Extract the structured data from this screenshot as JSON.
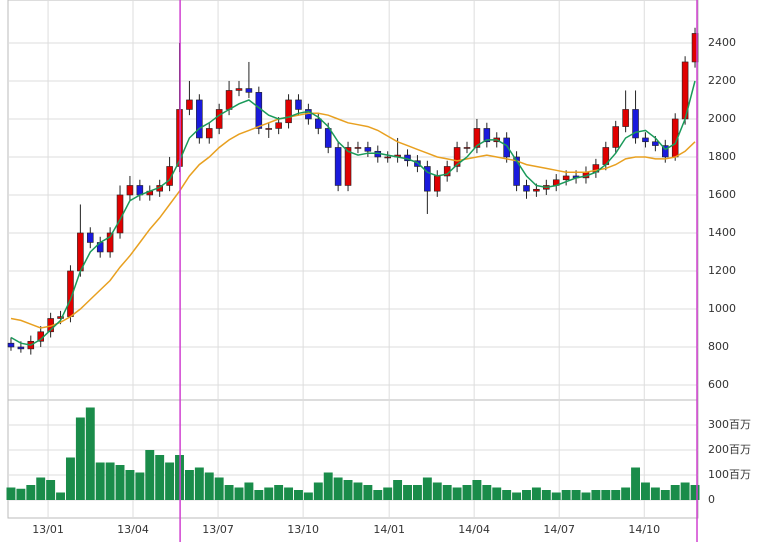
{
  "chart_data": {
    "type": "candlestick",
    "categories": [
      null,
      null,
      null,
      null,
      null,
      null,
      null,
      null,
      null,
      null,
      null,
      null,
      null,
      null,
      null,
      null,
      null,
      null,
      null,
      null,
      null,
      null,
      null,
      null,
      null,
      null,
      null,
      null,
      null,
      null,
      null,
      null,
      null,
      null,
      null,
      null,
      null,
      null,
      null,
      null,
      null,
      null,
      null,
      null,
      null,
      null,
      null,
      null,
      null,
      null,
      null,
      null,
      null,
      null,
      null,
      null,
      null,
      null,
      null,
      null,
      null,
      null,
      null,
      null,
      null,
      null,
      null,
      null,
      null,
      null
    ],
    "xlim": [
      -0.3,
      69.3
    ],
    "xticks": [
      {
        "value": 3.74,
        "label": "13/01"
      },
      {
        "value": 12.31,
        "label": "13/04"
      },
      {
        "value": 20.89,
        "label": "13/07"
      },
      {
        "value": 29.47,
        "label": "13/10"
      },
      {
        "value": 38.15,
        "label": "14/01"
      },
      {
        "value": 46.72,
        "label": "14/04"
      },
      {
        "value": 55.3,
        "label": "14/07"
      },
      {
        "value": 63.88,
        "label": "14/10"
      }
    ],
    "markers": [
      17.06,
      69.2
    ],
    "marker_color": "#d040d0",
    "ylim": [
      521,
      2626
    ],
    "yticks": [
      600,
      800,
      1000,
      1200,
      1400,
      1600,
      1800,
      2000,
      2200,
      2400
    ],
    "up_color": "#e00000",
    "down_color": "#1a1adc",
    "grid": true,
    "open": [
      820,
      800,
      790,
      830,
      880,
      950,
      960,
      1200,
      1400,
      1350,
      1300,
      1400,
      1600,
      1650,
      1600,
      1620,
      1650,
      1750,
      2050,
      2100,
      1900,
      1950,
      2050,
      2150,
      2160,
      2140,
      1950,
      1950,
      1980,
      2100,
      2050,
      2000,
      1950,
      1850,
      1650,
      1850,
      1850,
      1830,
      1800,
      1800,
      1810,
      1780,
      1750,
      1620,
      1700,
      1750,
      1850,
      1850,
      1950,
      1880,
      1900,
      1800,
      1650,
      1620,
      1630,
      1650,
      1680,
      1700,
      1690,
      1720,
      1760,
      1850,
      1960,
      2050,
      1900,
      1880,
      1860,
      1800,
      2000,
      2300
    ],
    "high": [
      850,
      830,
      860,
      910,
      980,
      990,
      1230,
      1550,
      1430,
      1380,
      1430,
      1650,
      1700,
      1680,
      1650,
      1680,
      1800,
      2400,
      2200,
      2130,
      1980,
      2080,
      2200,
      2200,
      2300,
      2170,
      1980,
      2010,
      2130,
      2130,
      2080,
      2030,
      1980,
      1880,
      1880,
      1880,
      1880,
      1860,
      1830,
      1900,
      1840,
      1810,
      1780,
      1730,
      1780,
      1880,
      1880,
      2000,
      1980,
      1930,
      1930,
      1830,
      1680,
      1660,
      1680,
      1710,
      1730,
      1730,
      1750,
      1790,
      1880,
      1990,
      2150,
      2150,
      1930,
      1910,
      1890,
      2030,
      2330,
      2480
    ],
    "low": [
      780,
      770,
      760,
      800,
      850,
      920,
      930,
      1170,
      1320,
      1270,
      1270,
      1370,
      1570,
      1570,
      1570,
      1590,
      1620,
      1720,
      2020,
      1870,
      1870,
      1920,
      2020,
      2120,
      2110,
      1920,
      1900,
      1920,
      1950,
      2020,
      1970,
      1920,
      1820,
      1620,
      1620,
      1820,
      1800,
      1770,
      1770,
      1770,
      1750,
      1720,
      1500,
      1590,
      1670,
      1720,
      1820,
      1820,
      1850,
      1850,
      1770,
      1620,
      1580,
      1590,
      1600,
      1620,
      1650,
      1660,
      1660,
      1690,
      1730,
      1820,
      1930,
      1870,
      1850,
      1830,
      1770,
      1780,
      1970,
      2270
    ],
    "close": [
      800,
      790,
      830,
      880,
      950,
      960,
      1200,
      1400,
      1350,
      1300,
      1400,
      1600,
      1650,
      1600,
      1620,
      1650,
      1750,
      2050,
      2100,
      1900,
      1950,
      2050,
      2150,
      2160,
      2140,
      1950,
      1950,
      1980,
      2100,
      2050,
      2000,
      1950,
      1850,
      1650,
      1850,
      1850,
      1830,
      1800,
      1800,
      1810,
      1780,
      1750,
      1620,
      1700,
      1750,
      1850,
      1850,
      1950,
      1880,
      1900,
      1800,
      1650,
      1620,
      1630,
      1650,
      1680,
      1700,
      1690,
      1720,
      1760,
      1850,
      1960,
      2050,
      1900,
      1880,
      1860,
      1800,
      2000,
      2300,
      2450
    ],
    "ma_short": {
      "color": "#1a9a5a",
      "values": [
        850,
        820,
        810,
        840,
        890,
        940,
        1050,
        1200,
        1300,
        1350,
        1380,
        1470,
        1570,
        1600,
        1620,
        1640,
        1680,
        1780,
        1900,
        1950,
        1980,
        2020,
        2050,
        2080,
        2100,
        2060,
        2020,
        2000,
        2010,
        2030,
        2040,
        2010,
        1960,
        1880,
        1830,
        1810,
        1820,
        1820,
        1810,
        1800,
        1790,
        1770,
        1720,
        1700,
        1710,
        1760,
        1800,
        1860,
        1890,
        1890,
        1860,
        1780,
        1700,
        1650,
        1640,
        1650,
        1670,
        1690,
        1700,
        1720,
        1760,
        1820,
        1900,
        1930,
        1940,
        1900,
        1840,
        1870,
        2000,
        2200
      ]
    },
    "ma_long": {
      "color": "#e8a020",
      "values": [
        950,
        940,
        920,
        900,
        910,
        930,
        960,
        1000,
        1050,
        1100,
        1150,
        1220,
        1280,
        1350,
        1420,
        1480,
        1550,
        1620,
        1700,
        1760,
        1800,
        1850,
        1890,
        1920,
        1940,
        1960,
        1980,
        2000,
        2010,
        2020,
        2030,
        2030,
        2020,
        2000,
        1980,
        1970,
        1960,
        1940,
        1910,
        1880,
        1860,
        1840,
        1820,
        1800,
        1790,
        1780,
        1790,
        1800,
        1810,
        1800,
        1790,
        1780,
        1760,
        1750,
        1740,
        1730,
        1720,
        1720,
        1720,
        1730,
        1740,
        1760,
        1790,
        1800,
        1800,
        1790,
        1790,
        1800,
        1830,
        1880
      ]
    },
    "volume": {
      "color": "#1a8c4a",
      "ylim": [
        0,
        380
      ],
      "yticks": [
        0,
        {
          "value": 100,
          "label": "100百万"
        },
        {
          "value": 200,
          "label": "200百万"
        },
        {
          "value": 300,
          "label": "300百万"
        }
      ],
      "values": [
        50,
        45,
        60,
        90,
        80,
        30,
        170,
        330,
        370,
        150,
        150,
        140,
        120,
        110,
        200,
        180,
        150,
        180,
        120,
        130,
        110,
        90,
        60,
        50,
        70,
        40,
        50,
        60,
        50,
        40,
        30,
        70,
        110,
        90,
        80,
        70,
        60,
        40,
        50,
        80,
        60,
        60,
        90,
        70,
        60,
        50,
        60,
        80,
        60,
        50,
        40,
        30,
        40,
        50,
        40,
        30,
        40,
        40,
        30,
        40,
        40,
        40,
        50,
        130,
        70,
        50,
        40,
        60,
        70,
        60
      ]
    }
  }
}
